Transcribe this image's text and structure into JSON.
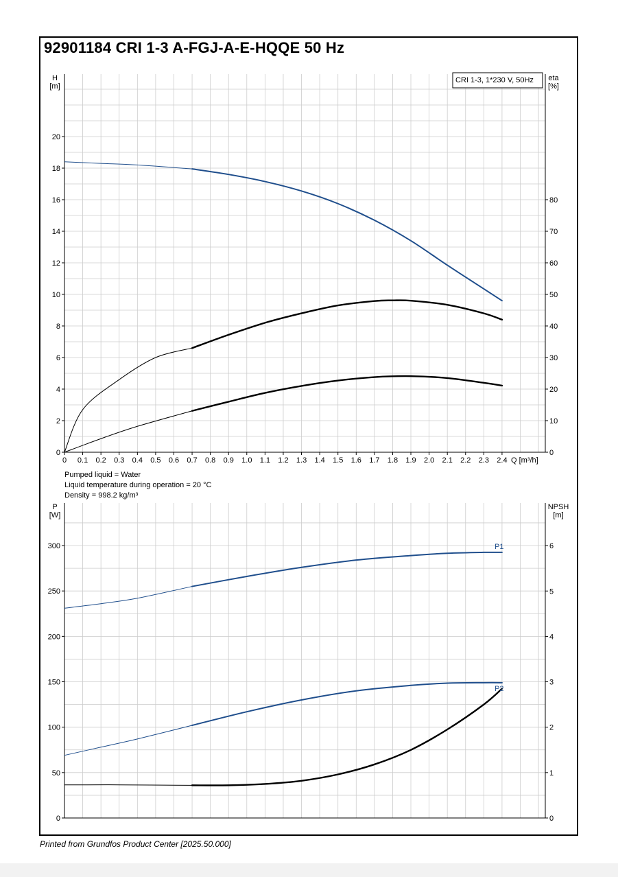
{
  "page": {
    "title": "92901184 CRI 1-3 A-FGJ-A-E-HQQE 50 Hz",
    "footer": "Printed from Grundfos Product Center [2025.50.000]"
  },
  "colors": {
    "blue": "#1f4e8c",
    "black": "#000000",
    "grid": "#cccccc"
  },
  "chart_data": [
    {
      "type": "line",
      "legend_box": "CRI 1-3, 1*230 V, 50Hz",
      "xlabel": "Q [m³/h]",
      "x_ticks": [
        "0",
        "0.1",
        "0.2",
        "0.3",
        "0.4",
        "0.5",
        "0.6",
        "0.7",
        "0.8",
        "0.9",
        "1.0",
        "1.1",
        "1.2",
        "1.3",
        "1.4",
        "1.5",
        "1.6",
        "1.7",
        "1.8",
        "1.9",
        "2.0",
        "2.1",
        "2.2",
        "2.3",
        "2.4"
      ],
      "xlim": [
        0,
        2.65
      ],
      "y_left": {
        "label_top": "H",
        "label_unit": "[m]",
        "ylim": [
          0,
          24
        ],
        "ticks": [
          "0",
          "2",
          "4",
          "6",
          "8",
          "10",
          "12",
          "14",
          "16",
          "18",
          "20"
        ]
      },
      "y_right": {
        "label_top": "eta",
        "label_unit": "[%]",
        "ylim": [
          0,
          120
        ],
        "ticks": [
          "0",
          "10",
          "20",
          "30",
          "40",
          "50",
          "60",
          "70",
          "80"
        ]
      },
      "operating_range_start": 0.7,
      "series": [
        {
          "axis": "left",
          "color": "blue",
          "x": [
            0,
            0.2,
            0.4,
            0.7,
            0.9,
            1.1,
            1.3,
            1.5,
            1.7,
            1.9,
            2.1,
            2.3,
            2.4
          ],
          "y": [
            18.4,
            18.3,
            18.2,
            17.95,
            17.6,
            17.15,
            16.55,
            15.75,
            14.7,
            13.4,
            11.85,
            10.35,
            9.6
          ]
        },
        {
          "axis": "right",
          "color": "black",
          "thick": true,
          "x": [
            0,
            0.1,
            0.3,
            0.5,
            0.7,
            0.9,
            1.1,
            1.3,
            1.5,
            1.7,
            1.8,
            1.9,
            2.1,
            2.3,
            2.4
          ],
          "y": [
            0,
            13.5,
            23,
            30,
            33,
            37.2,
            41,
            44,
            46.5,
            47.9,
            48.1,
            48,
            46.7,
            44,
            42
          ]
        },
        {
          "axis": "right",
          "color": "black",
          "thick": true,
          "x": [
            0,
            0.2,
            0.4,
            0.7,
            0.9,
            1.1,
            1.3,
            1.5,
            1.7,
            1.9,
            2.1,
            2.3,
            2.4
          ],
          "y": [
            0,
            4.3,
            8.2,
            13.1,
            16,
            18.8,
            21,
            22.7,
            23.8,
            24.1,
            23.5,
            22,
            21.1
          ]
        }
      ],
      "notes": [
        "Pumped liquid = Water",
        "Liquid temperature during operation = 20 °C",
        "Density = 998.2 kg/m³"
      ]
    },
    {
      "type": "line",
      "y_left": {
        "label_top": "P",
        "label_unit": "[W]",
        "ylim": [
          0,
          330
        ],
        "ticks": [
          "0",
          "50",
          "100",
          "150",
          "200",
          "250",
          "300"
        ]
      },
      "y_right": {
        "label_top": "NPSH",
        "label_unit": "[m]",
        "ylim": [
          0,
          6.6
        ],
        "ticks": [
          "0",
          "1",
          "2",
          "3",
          "4",
          "5",
          "6"
        ]
      },
      "xlim": [
        0,
        2.65
      ],
      "operating_range_start": 0.7,
      "series": [
        {
          "name": "P1",
          "axis": "left",
          "color": "blue",
          "x": [
            0,
            0.2,
            0.4,
            0.7,
            1.0,
            1.3,
            1.6,
            1.9,
            2.1,
            2.3,
            2.4
          ],
          "y": [
            231,
            236,
            242,
            255,
            266,
            276,
            284,
            289,
            291.5,
            292.5,
            292.5
          ]
        },
        {
          "name": "P2",
          "axis": "left",
          "color": "blue",
          "x": [
            0,
            0.2,
            0.4,
            0.7,
            1.0,
            1.3,
            1.6,
            1.9,
            2.1,
            2.3,
            2.4
          ],
          "y": [
            69,
            78,
            87,
            102,
            117,
            130,
            140,
            146,
            148.5,
            149,
            149
          ]
        },
        {
          "axis": "right",
          "color": "black",
          "thick": true,
          "x": [
            0,
            0.3,
            0.7,
            0.9,
            1.1,
            1.3,
            1.5,
            1.7,
            1.9,
            2.1,
            2.3,
            2.4
          ],
          "y": [
            0.73,
            0.73,
            0.72,
            0.72,
            0.75,
            0.82,
            0.96,
            1.18,
            1.5,
            1.95,
            2.5,
            2.85
          ]
        }
      ]
    }
  ]
}
